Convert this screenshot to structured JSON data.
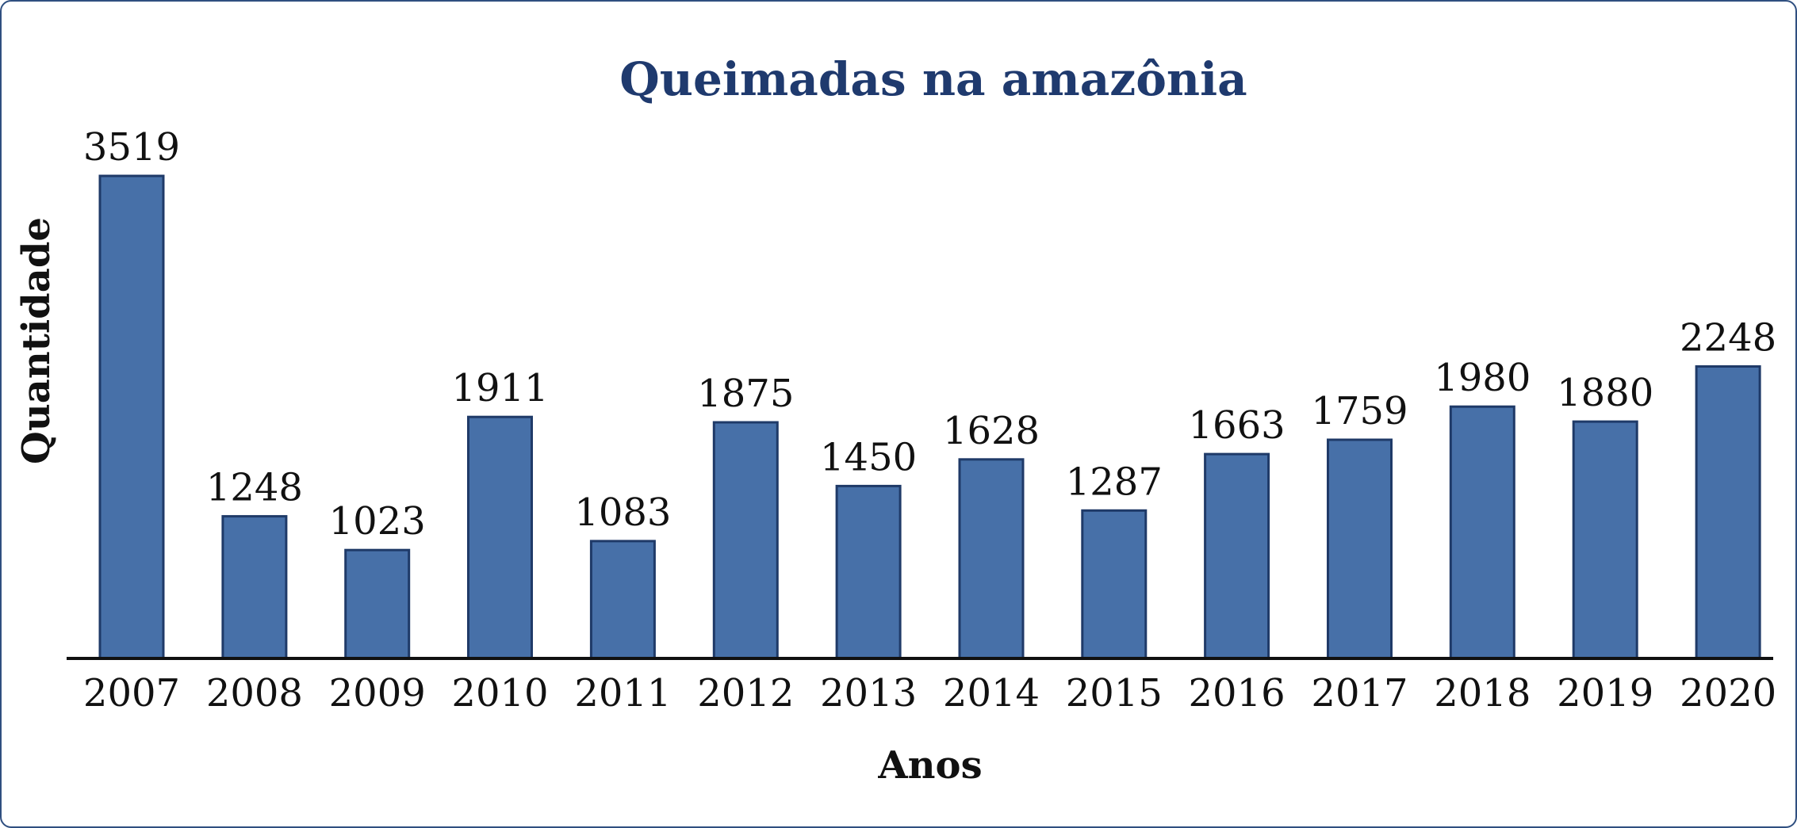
{
  "chart_data": {
    "type": "bar",
    "title": "Queimadas na amazônia",
    "xlabel": "Anos",
    "ylabel": "Quantidade",
    "categories": [
      "2007",
      "2008",
      "2009",
      "2010",
      "2011",
      "2012",
      "2013",
      "2014",
      "2015",
      "2016",
      "2017",
      "2018",
      "2019",
      "2020"
    ],
    "values": [
      3519,
      1248,
      1023,
      1911,
      1083,
      1875,
      1450,
      1628,
      1287,
      1663,
      1759,
      1980,
      1880,
      2248
    ],
    "data_labels": [
      "3519",
      "1248",
      "1023",
      "1911",
      "1083",
      "1875",
      "1450",
      "1628",
      "1287",
      "1663",
      "1759",
      "1980",
      "1880",
      "2248"
    ],
    "ylim": [
      300,
      3519
    ],
    "grid": false,
    "legend": "none",
    "colors": {
      "bar_fill": "#4770a8",
      "bar_stroke": "#1f3a68",
      "title": "#1f3a6e",
      "text": "#111111",
      "frame": "#2f4f80"
    }
  }
}
